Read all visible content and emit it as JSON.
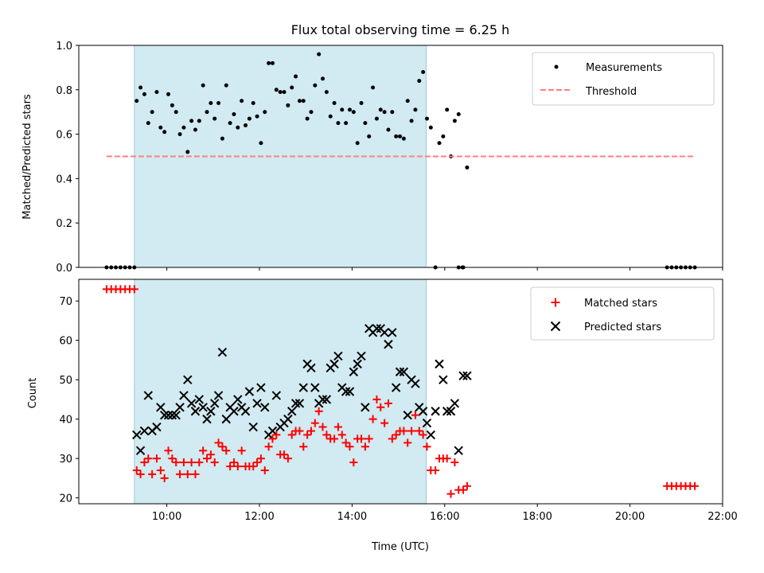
{
  "chart_data": [
    {
      "type": "scatter",
      "title": "Flux total observing time = 6.25 h",
      "ylabel": "Matched/Predicted stars",
      "xlabel": "",
      "ylim": [
        0,
        1.0
      ],
      "yticks": [
        "0.0",
        "0.2",
        "0.4",
        "0.6",
        "0.8",
        "1.0"
      ],
      "ytick_values": [
        0,
        0.2,
        0.4,
        0.6,
        0.8,
        1.0
      ],
      "xlim": [
        "08:06",
        "22:00"
      ],
      "legend_position": "top-right",
      "shaded_interval": [
        "09:18",
        "15:36"
      ],
      "shade_color": "#add8e6",
      "series": [
        {
          "name": "Measurements",
          "marker": "dot",
          "color": "#000000",
          "x": [
            "08:42",
            "08:48",
            "08:54",
            "09:00",
            "09:06",
            "09:12",
            "09:18",
            "09:21",
            "09:26",
            "09:31",
            "09:36",
            "09:41",
            "09:47",
            "09:52",
            "09:57",
            "10:02",
            "10:07",
            "10:12",
            "10:17",
            "10:22",
            "10:27",
            "10:32",
            "10:37",
            "10:42",
            "10:47",
            "10:52",
            "10:57",
            "11:02",
            "11:07",
            "11:12",
            "11:17",
            "11:22",
            "11:27",
            "11:32",
            "11:37",
            "11:42",
            "11:47",
            "11:52",
            "11:57",
            "12:02",
            "12:07",
            "12:12",
            "12:17",
            "12:22",
            "12:27",
            "12:32",
            "12:37",
            "12:42",
            "12:47",
            "12:52",
            "12:57",
            "13:02",
            "13:07",
            "13:12",
            "13:17",
            "13:22",
            "13:27",
            "13:32",
            "13:37",
            "13:42",
            "13:47",
            "13:52",
            "13:57",
            "14:02",
            "14:07",
            "14:12",
            "14:17",
            "14:22",
            "14:27",
            "14:32",
            "14:37",
            "14:42",
            "14:47",
            "14:52",
            "14:57",
            "15:02",
            "15:07",
            "15:12",
            "15:17",
            "15:22",
            "15:27",
            "15:32",
            "15:37",
            "15:42",
            "15:48",
            "15:53",
            "15:58",
            "16:03",
            "16:08",
            "16:13",
            "16:18",
            "16:24",
            "16:29",
            "16:18",
            "16:23",
            "20:48",
            "20:54",
            "21:00",
            "21:06",
            "21:12",
            "21:18",
            "21:24"
          ],
          "y": [
            0,
            0,
            0,
            0,
            0,
            0,
            0,
            0.75,
            0.81,
            0.78,
            0.65,
            0.7,
            0.79,
            0.63,
            0.61,
            0.78,
            0.73,
            0.7,
            0.6,
            0.63,
            0.52,
            0.66,
            0.62,
            0.66,
            0.82,
            0.7,
            0.74,
            0.67,
            0.74,
            0.58,
            0.82,
            0.65,
            0.69,
            0.63,
            0.75,
            0.64,
            0.67,
            0.74,
            0.68,
            0.56,
            0.7,
            0.92,
            0.92,
            0.8,
            0.79,
            0.79,
            0.73,
            0.81,
            0.86,
            0.75,
            0.75,
            0.67,
            0.7,
            0.82,
            0.96,
            0.85,
            0.79,
            0.68,
            0.74,
            0.65,
            0.71,
            0.65,
            0.71,
            0.7,
            0.56,
            0.74,
            0.65,
            0.59,
            0.81,
            0.67,
            0.71,
            0.7,
            0.62,
            0.7,
            0.59,
            0.59,
            0.58,
            0.75,
            0.66,
            0.71,
            0.84,
            0.88,
            0.67,
            0.63,
            0.0,
            0.56,
            0.59,
            0.71,
            0.5,
            0.66,
            0.69,
            0.0,
            0.45,
            0.0,
            0.0,
            0,
            0,
            0,
            0,
            0,
            0,
            0
          ]
        },
        {
          "name": "Threshold",
          "marker": "dashed-line",
          "color": "#ff7f7f",
          "x": [
            "08:42",
            "21:24"
          ],
          "y": [
            0.5,
            0.5
          ]
        }
      ]
    },
    {
      "type": "scatter",
      "title": "",
      "xlabel": "Time (UTC)",
      "ylabel": "Count",
      "ylim": [
        18.5,
        75.5
      ],
      "yticks": [
        "20",
        "30",
        "40",
        "50",
        "60",
        "70"
      ],
      "ytick_values": [
        20,
        30,
        40,
        50,
        60,
        70
      ],
      "xticks": [
        "10:00",
        "12:00",
        "14:00",
        "16:00",
        "18:00",
        "20:00",
        "22:00"
      ],
      "xtick_values": [
        "10:00",
        "12:00",
        "14:00",
        "16:00",
        "18:00",
        "20:00",
        "22:00"
      ],
      "xlim": [
        "08:06",
        "22:00"
      ],
      "legend_position": "top-right",
      "shaded_interval": [
        "09:18",
        "15:36"
      ],
      "shade_color": "#add8e6",
      "series": [
        {
          "name": "Matched stars",
          "marker": "plus",
          "color": "#ff0000",
          "x": [
            "08:42",
            "08:48",
            "08:54",
            "09:00",
            "09:06",
            "09:12",
            "09:18",
            "09:21",
            "09:26",
            "09:31",
            "09:36",
            "09:41",
            "09:47",
            "09:52",
            "09:57",
            "10:02",
            "10:07",
            "10:12",
            "10:17",
            "10:22",
            "10:27",
            "10:32",
            "10:37",
            "10:42",
            "10:47",
            "10:52",
            "10:57",
            "11:02",
            "11:07",
            "11:12",
            "11:17",
            "11:22",
            "11:27",
            "11:32",
            "11:37",
            "11:42",
            "11:47",
            "11:52",
            "11:57",
            "12:02",
            "12:07",
            "12:12",
            "12:17",
            "12:22",
            "12:27",
            "12:32",
            "12:37",
            "12:42",
            "12:47",
            "12:52",
            "12:57",
            "13:02",
            "13:07",
            "13:12",
            "13:17",
            "13:22",
            "13:27",
            "13:32",
            "13:37",
            "13:42",
            "13:47",
            "13:52",
            "13:57",
            "14:02",
            "14:07",
            "14:12",
            "14:17",
            "14:22",
            "14:27",
            "14:32",
            "14:37",
            "14:42",
            "14:47",
            "14:52",
            "14:57",
            "15:02",
            "15:07",
            "15:12",
            "15:17",
            "15:22",
            "15:27",
            "15:32",
            "15:37",
            "15:42",
            "15:48",
            "15:53",
            "15:58",
            "16:03",
            "16:08",
            "16:13",
            "16:18",
            "16:24",
            "16:29",
            "20:48",
            "20:54",
            "21:00",
            "21:06",
            "21:12",
            "21:18",
            "21:24"
          ],
          "y": [
            73,
            73,
            73,
            73,
            73,
            73,
            73,
            27,
            26,
            29,
            30,
            26,
            30,
            27,
            25,
            32,
            30,
            29,
            26,
            29,
            26,
            29,
            26,
            29,
            32,
            30,
            31,
            29,
            34,
            33,
            32,
            28,
            29,
            28,
            32,
            28,
            28,
            28,
            29,
            30,
            27,
            33,
            35,
            36,
            31,
            31,
            30,
            36,
            37,
            37,
            33,
            36,
            37,
            39,
            42,
            38,
            36,
            35,
            35,
            38,
            36,
            34,
            33,
            29,
            35,
            35,
            33,
            35,
            40,
            45,
            43,
            39,
            44,
            35,
            36,
            37,
            37,
            34,
            37,
            41,
            37,
            36,
            33,
            27,
            27,
            30,
            30,
            30,
            21,
            29,
            22,
            22,
            23,
            23,
            23,
            23,
            23,
            23,
            23,
            23
          ]
        },
        {
          "name": "Predicted stars",
          "marker": "x",
          "color": "#000000",
          "x": [
            "09:21",
            "09:26",
            "09:31",
            "09:36",
            "09:41",
            "09:47",
            "09:52",
            "09:57",
            "10:02",
            "10:07",
            "10:12",
            "10:17",
            "10:22",
            "10:27",
            "10:32",
            "10:37",
            "10:42",
            "10:47",
            "10:52",
            "10:57",
            "11:02",
            "11:07",
            "11:12",
            "11:17",
            "11:22",
            "11:27",
            "11:32",
            "11:37",
            "11:42",
            "11:47",
            "11:52",
            "11:57",
            "12:02",
            "12:07",
            "12:12",
            "12:17",
            "12:22",
            "12:27",
            "12:32",
            "12:37",
            "12:42",
            "12:47",
            "12:52",
            "12:57",
            "13:02",
            "13:07",
            "13:12",
            "13:17",
            "13:22",
            "13:27",
            "13:32",
            "13:37",
            "13:42",
            "13:47",
            "13:52",
            "13:57",
            "14:02",
            "14:07",
            "14:12",
            "14:17",
            "14:22",
            "14:27",
            "14:32",
            "14:37",
            "14:42",
            "14:47",
            "14:52",
            "14:57",
            "15:02",
            "15:07",
            "15:12",
            "15:17",
            "15:22",
            "15:27",
            "15:32",
            "15:37",
            "15:42",
            "15:48",
            "15:53",
            "15:58",
            "16:03",
            "16:08",
            "16:13",
            "16:18",
            "16:24",
            "16:29"
          ],
          "y": [
            36,
            32,
            37,
            46,
            37,
            38,
            43,
            41,
            41,
            41,
            41,
            43,
            46,
            50,
            44,
            42,
            45,
            43,
            40,
            42,
            44,
            46,
            57,
            40,
            43,
            42,
            45,
            43,
            42,
            47,
            38,
            44,
            48,
            43,
            36,
            37,
            46,
            38,
            39,
            40,
            42,
            44,
            44,
            48,
            54,
            53,
            48,
            44,
            45,
            45,
            53,
            54,
            56,
            48,
            47,
            47,
            52,
            54,
            56,
            43,
            63,
            62,
            63,
            63,
            62,
            59,
            62,
            48,
            52,
            52,
            41,
            50,
            49,
            43,
            42,
            39,
            36,
            42,
            54,
            50,
            42,
            42,
            44,
            32,
            51,
            51
          ]
        }
      ]
    }
  ]
}
